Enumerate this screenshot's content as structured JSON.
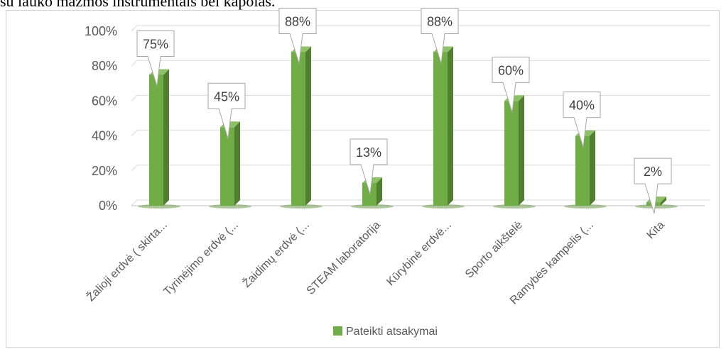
{
  "header_fragment": "su lauko mažmos instrumentais bei kapolas.",
  "chart_data": {
    "type": "bar",
    "categories": [
      "Žalioji erdvė ( skirta...",
      "Tyrinėjimo erdvė (...",
      "Žaidimų erdvė (...",
      "STEAM laboratorija",
      "Kūrybinė erdvė...",
      "Sporto aikštelė",
      "Ramybės kampelis (...",
      "Kita"
    ],
    "series": [
      {
        "name": "Pateikti atsakymai",
        "values": [
          75,
          45,
          88,
          13,
          88,
          60,
          40,
          2
        ]
      }
    ],
    "data_labels": [
      "75%",
      "45%",
      "88%",
      "13%",
      "88%",
      "60%",
      "40%",
      "2%"
    ],
    "y_ticks": [
      "0%",
      "20%",
      "40%",
      "60%",
      "80%",
      "100%"
    ],
    "ylim": [
      0,
      100
    ],
    "grid": true,
    "legend_position": "bottom",
    "colors": {
      "bar_front": "#70ad47",
      "bar_side": "#4f7f2f",
      "bar_top": "#8cc168",
      "grid": "#d9d9d9",
      "callout_border": "#a6a6a6"
    }
  }
}
